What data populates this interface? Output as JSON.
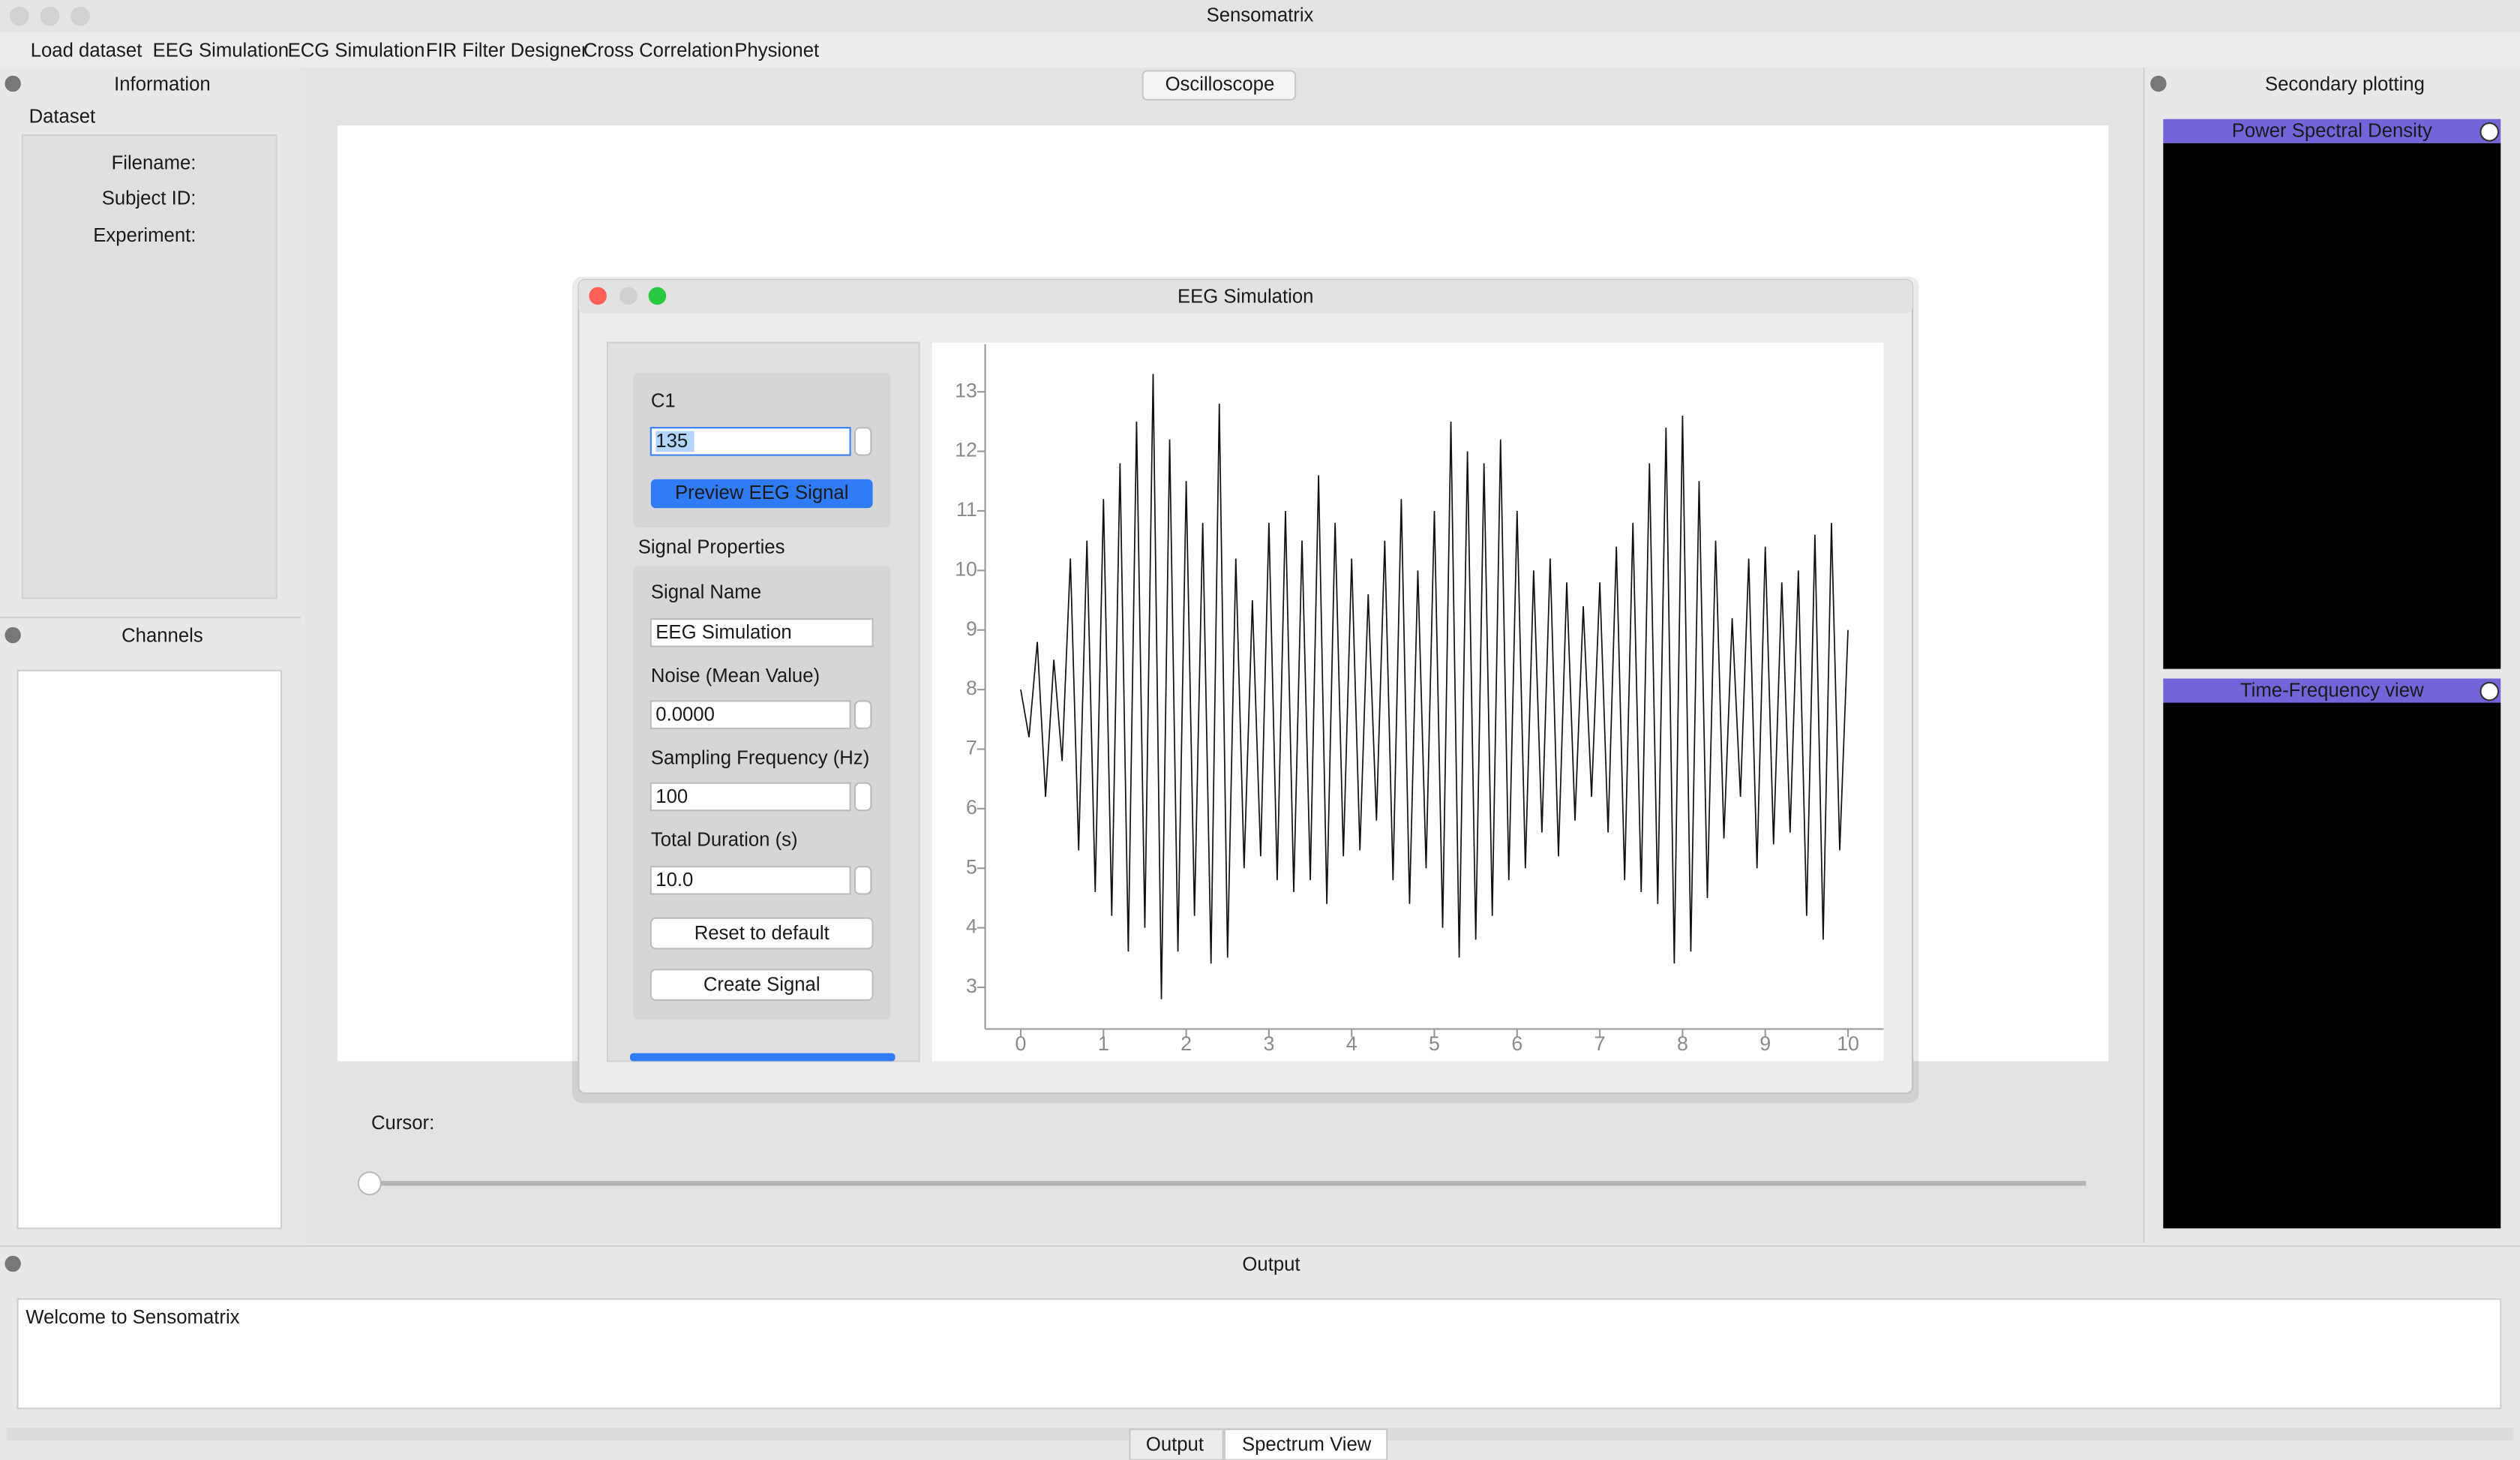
{
  "window": {
    "title": "Sensomatrix"
  },
  "menu": [
    "Load dataset",
    "EEG Simulation",
    "ECG Simulation",
    "FIR Filter Designer",
    "Cross Correlation",
    "Physionet"
  ],
  "information": {
    "title": "Information",
    "group": "Dataset",
    "fields": [
      "Filename:",
      "Subject ID:",
      "Experiment:"
    ]
  },
  "channels": {
    "title": "Channels"
  },
  "oscilloscope": {
    "tab": "Oscilloscope",
    "cursor_label": "Cursor:"
  },
  "secondary": {
    "title": "Secondary plotting",
    "plots": [
      "Power Spectral Density",
      "Time-Frequency view"
    ]
  },
  "output": {
    "title": "Output",
    "text": "Welcome to Sensomatrix",
    "tabs": [
      "Output",
      "Spectrum View"
    ]
  },
  "dialog": {
    "title": "EEG Simulation",
    "channel": "C1",
    "channel_value": "135",
    "preview_button": "Preview EEG Signal",
    "section": "Signal Properties",
    "fields": [
      {
        "label": "Signal Name",
        "value": "EEG Simulation"
      },
      {
        "label": "Noise (Mean Value)",
        "value": "0.0000"
      },
      {
        "label": "Sampling Frequency (Hz)",
        "value": "100"
      },
      {
        "label": "Total Duration (s)",
        "value": "10.0"
      }
    ],
    "buttons": [
      "Reset to default",
      "Create Signal"
    ]
  },
  "chart_data": {
    "type": "line",
    "x": [
      0,
      0.1,
      0.2,
      0.3,
      0.4,
      0.5,
      0.6,
      0.7,
      0.8,
      0.9,
      1,
      1.1,
      1.2,
      1.3,
      1.4,
      1.5,
      1.6,
      1.7,
      1.8,
      1.9,
      2,
      2.1,
      2.2,
      2.3,
      2.4,
      2.5,
      2.6,
      2.7,
      2.8,
      2.9,
      3,
      3.1,
      3.2,
      3.3,
      3.4,
      3.5,
      3.6,
      3.7,
      3.8,
      3.9,
      4,
      4.1,
      4.2,
      4.3,
      4.4,
      4.5,
      4.6,
      4.7,
      4.8,
      4.9,
      5,
      5.1,
      5.2,
      5.3,
      5.4,
      5.5,
      5.6,
      5.7,
      5.8,
      5.9,
      6,
      6.1,
      6.2,
      6.3,
      6.4,
      6.5,
      6.6,
      6.7,
      6.8,
      6.9,
      7,
      7.1,
      7.2,
      7.3,
      7.4,
      7.5,
      7.6,
      7.7,
      7.8,
      7.9,
      8,
      8.1,
      8.2,
      8.3,
      8.4,
      8.5,
      8.6,
      8.7,
      8.8,
      8.9,
      9,
      9.1,
      9.2,
      9.3,
      9.4,
      9.5,
      9.6,
      9.7,
      9.8,
      9.9,
      10
    ],
    "series": [
      {
        "color": "#111111",
        "values": [
          8.0,
          7.2,
          8.8,
          6.2,
          8.5,
          6.8,
          10.2,
          5.3,
          10.5,
          4.6,
          11.2,
          4.2,
          11.8,
          3.6,
          12.5,
          4.0,
          13.3,
          2.8,
          12.2,
          3.6,
          11.5,
          4.2,
          10.8,
          3.4,
          12.8,
          3.5,
          10.2,
          5.0,
          9.5,
          5.2,
          10.8,
          4.8,
          11.0,
          4.6,
          10.5,
          4.8,
          11.6,
          4.4,
          10.8,
          5.2,
          10.2,
          5.3,
          9.6,
          5.8,
          10.5,
          4.8,
          11.2,
          4.4,
          10.0,
          5.0,
          11.0,
          4.0,
          12.5,
          3.5,
          12.0,
          3.8,
          11.8,
          4.2,
          12.2,
          4.8,
          11.0,
          5.0,
          10.0,
          5.6,
          10.2,
          5.2,
          9.8,
          5.8,
          9.4,
          6.2,
          9.8,
          5.6,
          10.4,
          4.8,
          10.8,
          4.6,
          11.8,
          4.4,
          12.4,
          3.4,
          12.6,
          3.6,
          11.5,
          4.5,
          10.5,
          5.5,
          9.2,
          6.2,
          10.2,
          5.0,
          10.4,
          5.4,
          9.8,
          5.6,
          10.0,
          4.2,
          10.6,
          3.8,
          10.8,
          5.3,
          9.0
        ]
      }
    ],
    "xlim": [
      -0.43,
      10.43
    ],
    "ylim": [
      2.3,
      13.8
    ],
    "xticks": [
      0,
      1,
      2,
      3,
      4,
      5,
      6,
      7,
      8,
      9,
      10
    ],
    "yticks": [
      3,
      4,
      5,
      6,
      7,
      8,
      9,
      10,
      11,
      12,
      13
    ]
  }
}
